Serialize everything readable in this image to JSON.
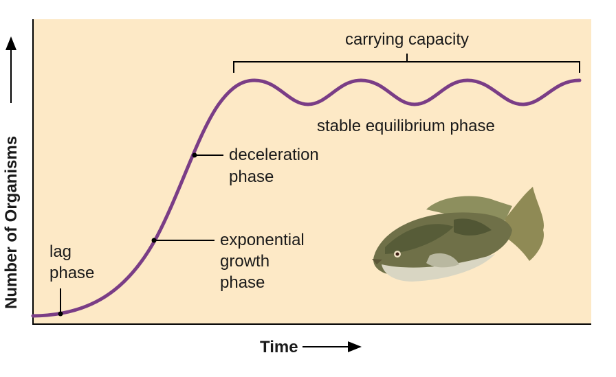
{
  "title": "carrying capacity",
  "phases": {
    "stable": "stable equilibrium phase",
    "deceleration": [
      "deceleration",
      "phase"
    ],
    "exponential": [
      "exponential",
      "growth",
      "phase"
    ],
    "lag": [
      "lag",
      "phase"
    ]
  },
  "axes": {
    "x": "Time",
    "y": "Number of Organisms"
  }
}
